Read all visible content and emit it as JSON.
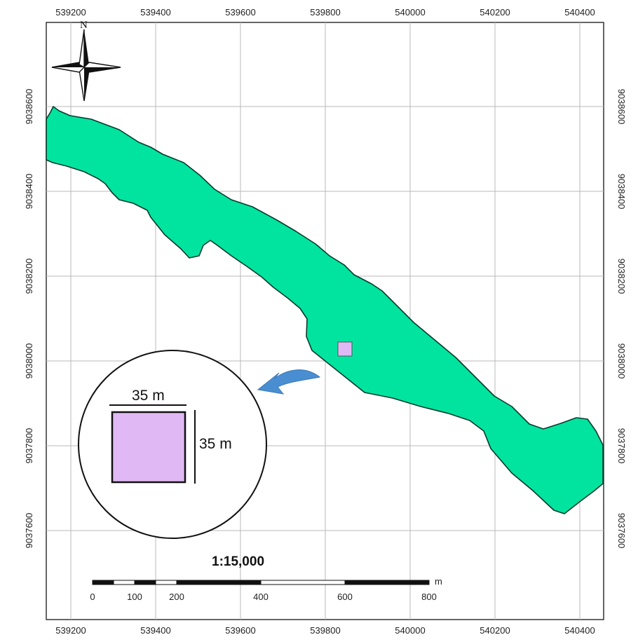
{
  "map": {
    "x_ticks": [
      "539200",
      "539400",
      "539600",
      "539800",
      "540000",
      "540200",
      "540400"
    ],
    "y_ticks": [
      "9038600",
      "9038400",
      "9038200",
      "9038000",
      "9037800",
      "9037600"
    ],
    "north_label": "N",
    "inset": {
      "width_label": "35 m",
      "height_label": "35 m"
    },
    "scale_bar": {
      "ratio": "1:15,000",
      "unit": "m",
      "labels": [
        "0",
        "100",
        "200",
        "400",
        "600",
        "800"
      ]
    },
    "colors": {
      "water": "#00e4a0",
      "plot": "#e0b8f4",
      "arrow": "#4a8ed2",
      "grid": "#b8b8b8"
    }
  }
}
